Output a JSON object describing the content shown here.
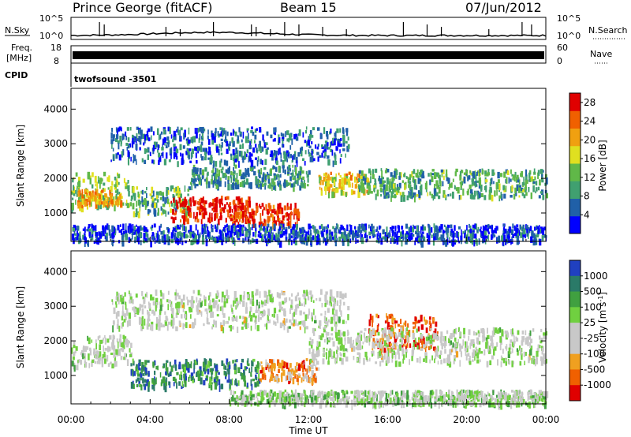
{
  "header": {
    "station": "Prince George (fitACF)",
    "beam": "Beam 15",
    "date": "07/Jun/2012"
  },
  "top_panels": {
    "nsky_label": "N.Sky",
    "nsky_ticks": [
      "10^5",
      "10^0"
    ],
    "nsearch_label": "N.Search",
    "nsearch_ticks": [
      "10^5",
      "10^0"
    ],
    "freq_label_line1": "Freq.",
    "freq_label_line2": "[MHz]",
    "freq_ticks": [
      "18",
      "8"
    ],
    "nave_label": "Nave",
    "nave_ticks": [
      "60",
      "0"
    ],
    "cpid_label": "CPID",
    "cpid_value": "twofsound -3501"
  },
  "chart_data": [
    {
      "type": "heatmap",
      "quantity": "power",
      "xlabel": "",
      "ylabel": "Slant Range [km]",
      "x_range": [
        "00:00",
        "24:00"
      ],
      "y_ticks": [
        1000,
        2000,
        3000,
        4000
      ],
      "ylim": [
        180,
        4600
      ],
      "colorbar_label": "Power [dB]",
      "colorbar_ticks": [
        4,
        8,
        12,
        16,
        20,
        24,
        28
      ],
      "colorbar_range": [
        0,
        30
      ],
      "colors": [
        "#0000ff",
        "#2060a8",
        "#40a070",
        "#60b848",
        "#e0e020",
        "#f0a010",
        "#f06000",
        "#e00000"
      ],
      "regions": [
        {
          "t0": 0.0,
          "t1": 3.0,
          "r0": 1200,
          "r1": 2200,
          "level": 0.45
        },
        {
          "t0": 0.3,
          "t1": 2.5,
          "r0": 1300,
          "r1": 1700,
          "level": 0.7
        },
        {
          "t0": 3.0,
          "t1": 6.0,
          "r0": 1000,
          "r1": 1800,
          "level": 0.4
        },
        {
          "t0": 5.0,
          "t1": 9.0,
          "r0": 800,
          "r1": 1500,
          "level": 0.95
        },
        {
          "t0": 8.0,
          "t1": 11.5,
          "r0": 700,
          "r1": 1300,
          "level": 0.9
        },
        {
          "t0": 6.0,
          "t1": 12.0,
          "r0": 1800,
          "r1": 2400,
          "level": 0.3
        },
        {
          "t0": 12.5,
          "t1": 15.0,
          "r0": 1600,
          "r1": 2200,
          "level": 0.6
        },
        {
          "t0": 14.5,
          "t1": 24.0,
          "r0": 1500,
          "r1": 2300,
          "level": 0.35
        },
        {
          "t0": 2.0,
          "t1": 14.0,
          "r0": 2500,
          "r1": 3500,
          "level": 0.2
        },
        {
          "t0": 0.0,
          "t1": 24.0,
          "r0": 200,
          "r1": 700,
          "level": 0.15
        }
      ]
    },
    {
      "type": "heatmap",
      "quantity": "velocity",
      "xlabel": "Time UT",
      "ylabel": "Slant Range [km]",
      "x_ticks": [
        "00:00",
        "04:00",
        "08:00",
        "12:00",
        "16:00",
        "20:00",
        "00:00"
      ],
      "y_ticks": [
        1000,
        2000,
        3000,
        4000
      ],
      "ylim": [
        180,
        4600
      ],
      "colorbar_label": "Velocity [m s^-1]",
      "colorbar_ticks": [
        "1000",
        "500",
        "100",
        "25",
        "-25",
        "-100",
        "-500",
        "-1000"
      ],
      "colors": [
        "#2040c0",
        "#2a7a68",
        "#40a040",
        "#70d040",
        "#c8c8c8",
        "#c8c8c8",
        "#f0a020",
        "#f06000",
        "#e00000"
      ],
      "regions": [
        {
          "t0": 0.0,
          "t1": 3.0,
          "r0": 1300,
          "r1": 2200,
          "level": 0.5
        },
        {
          "t0": 3.0,
          "t1": 9.5,
          "r0": 700,
          "r1": 1500,
          "level": 0.2
        },
        {
          "t0": 9.5,
          "t1": 12.5,
          "r0": 900,
          "r1": 1500,
          "level": 0.75
        },
        {
          "t0": 15.0,
          "t1": 18.5,
          "r0": 1800,
          "r1": 2800,
          "level": 0.85
        },
        {
          "t0": 12.0,
          "t1": 24.0,
          "r0": 1400,
          "r1": 2400,
          "level": 0.5
        },
        {
          "t0": 2.0,
          "t1": 14.0,
          "r0": 2400,
          "r1": 3500,
          "level": 0.5
        },
        {
          "t0": 8.0,
          "t1": 24.0,
          "r0": 200,
          "r1": 600,
          "level": 0.45
        }
      ]
    }
  ]
}
